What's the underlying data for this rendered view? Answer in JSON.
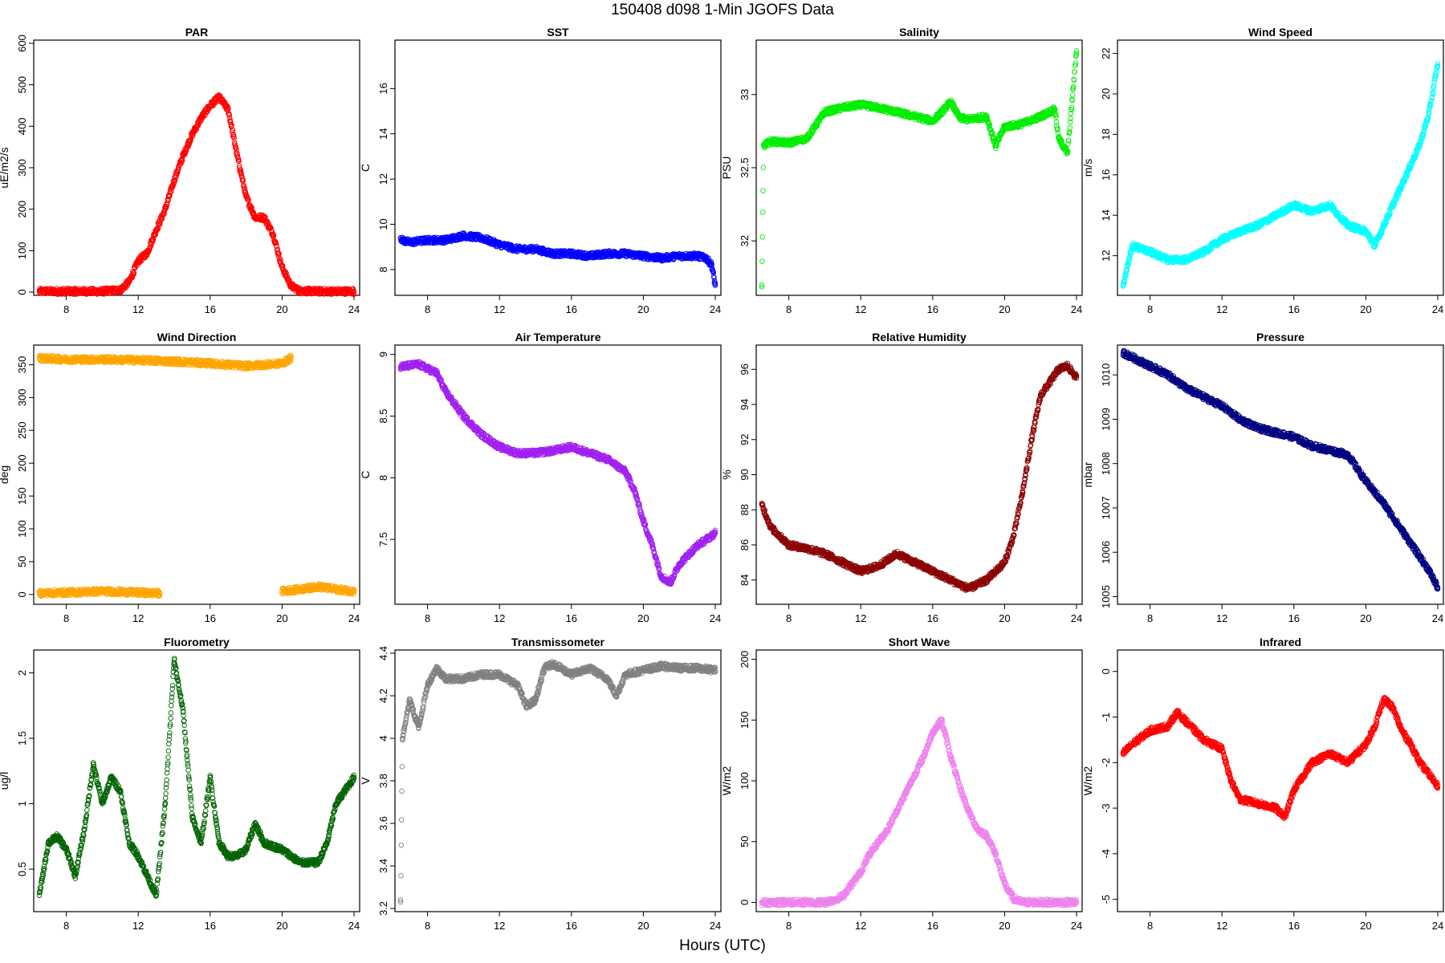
{
  "title": "150408   d098   1-Min  JGOFS Data",
  "x_axis_label": "Hours (UTC)",
  "x_ticks": [
    8,
    12,
    16,
    20,
    24
  ],
  "chart_data": [
    {
      "type": "scatter",
      "title": "PAR",
      "ylabel": "uE/m2/s",
      "xlim": [
        6.5,
        24
      ],
      "ylim": [
        0,
        600
      ],
      "yticks": [
        0,
        100,
        200,
        300,
        400,
        500,
        600
      ],
      "color": "#ff0000",
      "x": [
        6.5,
        8,
        10,
        11,
        11.5,
        12,
        12.5,
        13,
        13.5,
        14,
        14.5,
        15,
        15.5,
        16,
        16.5,
        17,
        17.5,
        18,
        18.5,
        19,
        19.5,
        20,
        20.5,
        21,
        22,
        24
      ],
      "y": [
        2,
        2,
        2,
        5,
        25,
        75,
        95,
        150,
        200,
        270,
        330,
        380,
        420,
        450,
        470,
        440,
        330,
        230,
        180,
        180,
        140,
        60,
        15,
        3,
        2,
        2
      ]
    },
    {
      "type": "scatter",
      "title": "SST",
      "ylabel": "C",
      "xlim": [
        6.5,
        24
      ],
      "ylim": [
        7,
        18
      ],
      "yticks": [
        8,
        10,
        12,
        14,
        16
      ],
      "color": "#0000ff",
      "x": [
        6.5,
        6.6,
        7,
        8,
        9,
        10,
        11,
        12,
        13,
        14,
        15,
        16,
        17,
        18,
        19,
        20,
        21,
        22,
        23,
        23.5,
        23.8,
        24
      ],
      "y": [
        9.4,
        9.3,
        9.2,
        9.3,
        9.3,
        9.5,
        9.4,
        9.1,
        8.9,
        8.9,
        8.7,
        8.7,
        8.6,
        8.7,
        8.7,
        8.6,
        8.5,
        8.6,
        8.6,
        8.5,
        8.2,
        7.3
      ]
    },
    {
      "type": "scatter",
      "title": "Salinity",
      "ylabel": "PSU",
      "xlim": [
        6.5,
        24
      ],
      "ylim": [
        31.65,
        33.35
      ],
      "yticks": [
        32.0,
        32.5,
        33.0
      ],
      "color": "#00ee00",
      "x": [
        6.5,
        6.6,
        7,
        8,
        9,
        10,
        11,
        12,
        13,
        14,
        15,
        16,
        16.5,
        17,
        17.5,
        18,
        19,
        19.5,
        20,
        21,
        22,
        22.8,
        23,
        23.5,
        24
      ],
      "y": [
        31.7,
        32.65,
        32.68,
        32.67,
        32.7,
        32.88,
        32.91,
        32.93,
        32.91,
        32.88,
        32.85,
        32.82,
        32.88,
        32.95,
        32.84,
        32.83,
        32.85,
        32.65,
        32.78,
        32.8,
        32.85,
        32.9,
        32.7,
        32.6,
        33.3
      ]
    },
    {
      "type": "scatter",
      "title": "Wind Speed",
      "ylabel": "m/s",
      "xlim": [
        6.5,
        24
      ],
      "ylim": [
        10.2,
        22.5
      ],
      "yticks": [
        12,
        14,
        16,
        18,
        20,
        22
      ],
      "color": "#00ffff",
      "x": [
        6.5,
        7,
        8,
        9,
        10,
        11,
        12,
        13,
        14,
        15,
        16,
        17,
        18,
        19,
        20,
        20.5,
        21,
        22,
        23,
        23.5,
        24
      ],
      "y": [
        10.5,
        12.5,
        12.2,
        11.8,
        11.8,
        12.2,
        12.8,
        13.2,
        13.5,
        14,
        14.5,
        14.2,
        14.5,
        13.5,
        13.2,
        12.5,
        13.5,
        15.5,
        17.5,
        19,
        21.5
      ]
    },
    {
      "type": "scatter",
      "title": "Wind Direction",
      "ylabel": "deg",
      "xlim": [
        6.5,
        24
      ],
      "ylim": [
        -10,
        375
      ],
      "yticks": [
        0,
        50,
        100,
        150,
        200,
        250,
        300,
        350
      ],
      "color": "#ffa500",
      "series": [
        {
          "x": [
            6.5,
            8,
            10,
            12,
            14,
            16,
            18,
            20,
            20.5
          ],
          "y": [
            360,
            358,
            358,
            357,
            355,
            352,
            348,
            352,
            360
          ]
        },
        {
          "x": [
            6.5,
            8,
            10,
            12,
            13,
            13.2
          ],
          "y": [
            2,
            3,
            5,
            3,
            2,
            2
          ]
        },
        {
          "x": [
            20,
            21,
            22,
            23,
            24
          ],
          "y": [
            5,
            8,
            12,
            8,
            5
          ]
        }
      ]
    },
    {
      "type": "scatter",
      "title": "Air Temperature",
      "ylabel": "C",
      "xlim": [
        6.5,
        24
      ],
      "ylim": [
        7.0,
        9.05
      ],
      "yticks": [
        7.5,
        8.0,
        8.5,
        9.0
      ],
      "color": "#a020f0",
      "x": [
        6.5,
        7.5,
        8.5,
        9,
        10,
        11,
        12,
        13,
        14,
        15,
        16,
        17,
        18,
        19,
        19.5,
        20,
        20.5,
        21,
        21.5,
        22,
        23,
        24
      ],
      "y": [
        8.9,
        8.92,
        8.85,
        8.7,
        8.5,
        8.35,
        8.25,
        8.2,
        8.2,
        8.22,
        8.25,
        8.2,
        8.15,
        8.05,
        7.9,
        7.65,
        7.45,
        7.2,
        7.15,
        7.3,
        7.45,
        7.55
      ]
    },
    {
      "type": "scatter",
      "title": "Relative Humidity",
      "ylabel": "%",
      "xlim": [
        6.5,
        24
      ],
      "ylim": [
        82.8,
        97.2
      ],
      "yticks": [
        84,
        86,
        88,
        90,
        92,
        94,
        96
      ],
      "color": "#8b0000",
      "x": [
        6.5,
        7,
        8,
        9,
        10,
        11,
        12,
        13,
        14,
        15,
        16,
        17,
        18,
        19,
        20,
        20.5,
        21,
        21.5,
        22,
        23,
        23.5,
        24
      ],
      "y": [
        88.3,
        87,
        86,
        85.8,
        85.5,
        85,
        84.5,
        84.8,
        85.5,
        85,
        84.5,
        84,
        83.5,
        84,
        85,
        86.5,
        89,
        92,
        94.5,
        96,
        96.2,
        95.5
      ]
    },
    {
      "type": "scatter",
      "title": "Pressure",
      "ylabel": "mbar",
      "xlim": [
        6.5,
        24
      ],
      "ylim": [
        1004.9,
        1010.6
      ],
      "yticks": [
        1005,
        1006,
        1007,
        1008,
        1009,
        1010
      ],
      "color": "#000080",
      "x": [
        6.5,
        8,
        9,
        10,
        11,
        12,
        13,
        14,
        15,
        16,
        17,
        18,
        19,
        20,
        21,
        22,
        23,
        23.5,
        24
      ],
      "y": [
        1010.5,
        1010.2,
        1010,
        1009.7,
        1009.5,
        1009.3,
        1009,
        1008.8,
        1008.7,
        1008.6,
        1008.4,
        1008.3,
        1008.2,
        1007.6,
        1007.1,
        1006.5,
        1005.9,
        1005.6,
        1005.2
      ]
    },
    {
      "type": "scatter",
      "title": "Fluorometry",
      "ylabel": "ug/l",
      "xlim": [
        6.5,
        24
      ],
      "ylim": [
        0.2,
        2.15
      ],
      "yticks": [
        0.5,
        1.0,
        1.5,
        2.0
      ],
      "color": "#006400",
      "x": [
        6.5,
        7,
        7.5,
        8,
        8.5,
        9,
        9.5,
        10,
        10.5,
        11,
        11.5,
        12,
        12.5,
        13,
        13.5,
        14,
        14.5,
        15,
        15.5,
        16,
        16.5,
        17,
        17.5,
        18,
        18.5,
        19,
        20,
        21,
        22,
        22.5,
        23,
        24
      ],
      "y": [
        0.3,
        0.7,
        0.75,
        0.65,
        0.45,
        0.8,
        1.3,
        1.0,
        1.2,
        1.1,
        0.7,
        0.6,
        0.45,
        0.3,
        1.0,
        2.1,
        1.7,
        0.9,
        0.7,
        1.2,
        0.7,
        0.6,
        0.6,
        0.65,
        0.85,
        0.7,
        0.65,
        0.55,
        0.55,
        0.7,
        1.0,
        1.2
      ]
    },
    {
      "type": "scatter",
      "title": "Transmissometer",
      "ylabel": "V",
      "xlim": [
        6.5,
        24
      ],
      "ylim": [
        3.2,
        4.4
      ],
      "yticks": [
        3.2,
        3.4,
        3.6,
        3.8,
        4.0,
        4.2,
        4.4
      ],
      "color": "#808080",
      "x": [
        6.5,
        6.6,
        7,
        7.5,
        8,
        8.5,
        9,
        10,
        11,
        12,
        13,
        13.5,
        14,
        14.5,
        15,
        16,
        17,
        18,
        18.5,
        19,
        20,
        21,
        22,
        23,
        24
      ],
      "y": [
        3.24,
        4.0,
        4.18,
        4.05,
        4.25,
        4.33,
        4.28,
        4.28,
        4.3,
        4.3,
        4.25,
        4.15,
        4.18,
        4.33,
        4.35,
        4.3,
        4.33,
        4.28,
        4.2,
        4.3,
        4.32,
        4.34,
        4.33,
        4.33,
        4.32
      ]
    },
    {
      "type": "scatter",
      "title": "Short Wave",
      "ylabel": "W/m2",
      "xlim": [
        6.5,
        24
      ],
      "ylim": [
        -5,
        205
      ],
      "yticks": [
        0,
        50,
        100,
        150,
        200
      ],
      "color": "#ee82ee",
      "x": [
        6.5,
        8,
        10,
        10.5,
        11,
        11.5,
        12,
        12.5,
        13,
        13.5,
        14,
        14.5,
        15,
        15.5,
        16,
        16.5,
        17,
        17.5,
        18,
        18.5,
        19,
        19.5,
        20,
        20.5,
        21,
        22,
        24
      ],
      "y": [
        0,
        0,
        0,
        2,
        5,
        15,
        25,
        40,
        50,
        60,
        75,
        90,
        105,
        120,
        140,
        150,
        120,
        95,
        75,
        60,
        55,
        40,
        15,
        3,
        0,
        0,
        0
      ]
    },
    {
      "type": "scatter",
      "title": "Infrared",
      "ylabel": "W/m2",
      "xlim": [
        6.5,
        24
      ],
      "ylim": [
        -5.2,
        0.4
      ],
      "yticks": [
        -5,
        -4,
        -3,
        -2,
        -1,
        0
      ],
      "color": "#ff0000",
      "x": [
        6.5,
        7,
        8,
        9,
        9.5,
        10,
        11,
        12,
        12.5,
        13,
        14,
        15,
        15.5,
        16,
        16.5,
        17,
        18,
        19,
        20,
        20.5,
        21,
        21.5,
        22,
        22.5,
        23,
        24
      ],
      "y": [
        -1.8,
        -1.6,
        -1.3,
        -1.2,
        -0.9,
        -1.1,
        -1.5,
        -1.7,
        -2.4,
        -2.8,
        -2.9,
        -3.0,
        -3.2,
        -2.6,
        -2.3,
        -2.0,
        -1.8,
        -2.0,
        -1.6,
        -1.2,
        -0.6,
        -0.8,
        -1.3,
        -1.6,
        -2.0,
        -2.5
      ]
    }
  ]
}
